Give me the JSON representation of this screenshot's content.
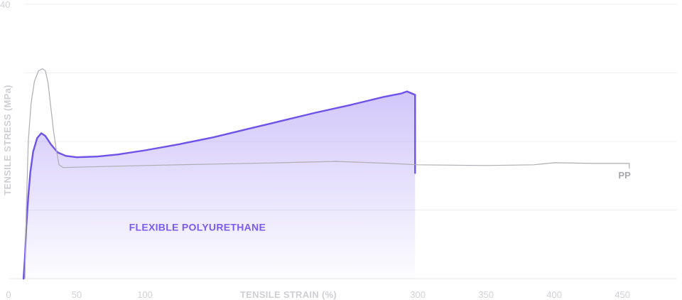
{
  "chart_data": {
    "type": "line",
    "xlabel": "TENSILE STRAIN (%)",
    "ylabel": "TENSILE STRESS (MPa)",
    "xlim": [
      0,
      490
    ],
    "ylim": [
      0,
      40
    ],
    "x_ticks": [
      {
        "value": 0,
        "label": "0"
      },
      {
        "value": 50,
        "label": "50"
      },
      {
        "value": 100,
        "label": "100"
      },
      {
        "value": 300,
        "label": "300"
      },
      {
        "value": 350,
        "label": "350"
      },
      {
        "value": 400,
        "label": "400"
      },
      {
        "value": 450,
        "label": "450"
      }
    ],
    "y_ticks": [
      {
        "value": 40,
        "label": "40"
      }
    ],
    "gridlines_y": [
      10,
      20,
      30,
      40
    ],
    "series": [
      {
        "name": "FLEXIBLE POLYURETHANE",
        "color": "#6f52ea",
        "fill": true,
        "points": [
          [
            11,
            0
          ],
          [
            12,
            3
          ],
          [
            13,
            7.5
          ],
          [
            14.5,
            12
          ],
          [
            16,
            15.5
          ],
          [
            18,
            18.5
          ],
          [
            21,
            20.5
          ],
          [
            24,
            21.2
          ],
          [
            27,
            20.8
          ],
          [
            31,
            19.6
          ],
          [
            36,
            18.4
          ],
          [
            42,
            17.9
          ],
          [
            50,
            17.7
          ],
          [
            65,
            17.8
          ],
          [
            80,
            18.1
          ],
          [
            100,
            18.7
          ],
          [
            125,
            19.6
          ],
          [
            150,
            20.6
          ],
          [
            175,
            21.8
          ],
          [
            200,
            23
          ],
          [
            225,
            24.2
          ],
          [
            250,
            25.3
          ],
          [
            275,
            26.5
          ],
          [
            288,
            27
          ],
          [
            292,
            27.3
          ],
          [
            298,
            26.8
          ],
          [
            298,
            15.4
          ]
        ]
      },
      {
        "name": "PP",
        "color": "#adadb3",
        "fill": false,
        "points": [
          [
            12,
            0
          ],
          [
            13,
            10
          ],
          [
            14.5,
            20
          ],
          [
            16.5,
            25.5
          ],
          [
            19,
            28.8
          ],
          [
            22,
            30.3
          ],
          [
            25,
            30.6
          ],
          [
            27,
            30.3
          ],
          [
            29,
            28.5
          ],
          [
            31,
            25
          ],
          [
            33,
            21.5
          ],
          [
            35,
            18.8
          ],
          [
            37,
            16.6
          ],
          [
            40,
            16.2
          ],
          [
            60,
            16.3
          ],
          [
            100,
            16.5
          ],
          [
            150,
            16.7
          ],
          [
            200,
            16.9
          ],
          [
            240,
            17.1
          ],
          [
            280,
            16.8
          ],
          [
            300,
            16.6
          ],
          [
            350,
            16.5
          ],
          [
            385,
            16.6
          ],
          [
            400,
            16.9
          ],
          [
            430,
            16.8
          ],
          [
            455,
            16.8
          ],
          [
            455,
            16.1
          ]
        ]
      }
    ],
    "series_labels": [
      {
        "text": "FLEXIBLE POLYURETHANE",
        "x": 102,
        "y": 7
      },
      {
        "text": "PP",
        "x": 447,
        "y": 14.6
      }
    ]
  }
}
